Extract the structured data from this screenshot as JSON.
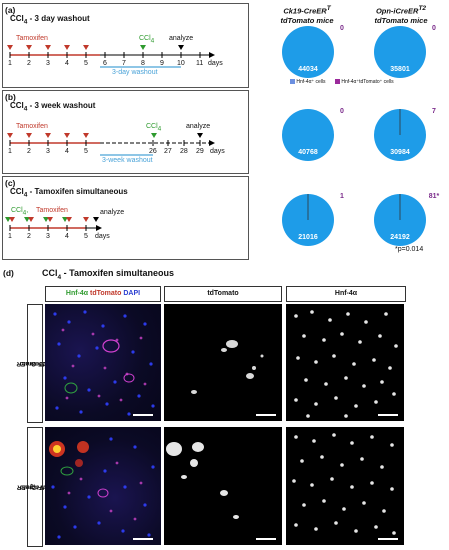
{
  "panels": {
    "a": {
      "label": "(a)",
      "title": "CCl",
      "title_sub": "4",
      "title_rest": " - 3 day washout",
      "tamoxifen": "Tamoxifen",
      "ccl": "CCl",
      "ccl_sub": "4",
      "analyze": "analyze",
      "days": [
        "1",
        "2",
        "3",
        "4",
        "5",
        "6",
        "7",
        "8",
        "9",
        "10",
        "11"
      ],
      "days_unit": "days",
      "washout": "3-day washout"
    },
    "b": {
      "label": "(b)",
      "title": "CCl",
      "title_sub": "4",
      "title_rest": " - 3 week washout",
      "tamoxifen": "Tamoxifen",
      "ccl": "CCl",
      "ccl_sub": "4",
      "analyze": "analyze",
      "days_left": [
        "1",
        "2",
        "3",
        "4",
        "5"
      ],
      "days_right": [
        "26",
        "27",
        "28",
        "29"
      ],
      "days_unit": "days",
      "washout": "3-week washout"
    },
    "c": {
      "label": "(c)",
      "title": "CCl",
      "title_sub": "4",
      "title_rest": " - Tamoxifen simultaneous",
      "ccl": "CCl",
      "ccl_sub": "4",
      "tamoxifen": "Tamoxifen",
      "analyze": "analyze",
      "days": [
        "1",
        "2",
        "3",
        "4",
        "5"
      ],
      "days_unit": "days"
    },
    "d": {
      "label": "(d)",
      "title": "CCl",
      "title_sub": "4",
      "title_rest": " - Tamoxifen simultaneous"
    }
  },
  "columns": {
    "ck19": "Ck19-CreER",
    "ck19_sup": "T",
    "ck19_line2": "tdTomato mice",
    "opn": "Opn-iCreER",
    "opn_sup": "T2",
    "opn_line2": "tdTomato mice"
  },
  "legend": {
    "hnf": "Hnf-4α⁺ cells",
    "hnf_td": "Hnf-4α⁺tdTomato⁺ cells"
  },
  "pies": {
    "a_ck19": {
      "neg": "44034",
      "pos": "0"
    },
    "a_opn": {
      "neg": "35801",
      "pos": "0"
    },
    "b_ck19": {
      "neg": "40768",
      "pos": "0"
    },
    "b_opn": {
      "neg": "30984",
      "pos": "7"
    },
    "c_ck19": {
      "neg": "21016",
      "pos": "1"
    },
    "c_opn": {
      "neg": "24192",
      "pos": "81*"
    }
  },
  "pvalue": "*p=0.014",
  "micro": {
    "merge_head_hnf": "Hnf-4α",
    "merge_head_td": "tdTomato",
    "merge_head_dapi": "DAPI",
    "td_head": "tdTomato",
    "hnf_head": "Hnf-4α",
    "row1": "Ck19-CreER",
    "row1_sup": "T",
    "row1_rest": ";tdTomato",
    "row2": "Opn-iCreER",
    "row2_sup": "T2",
    "row2_rest": ";tdTomato"
  },
  "colors": {
    "pie": "#1e9ce8",
    "pos_text": "#7a2a8a",
    "tamoxifen": "#c0392b",
    "ccl4": "#2e9a2e",
    "washout": "#4aa3d8",
    "legend_hnf": "#6b8fe0",
    "legend_td": "#9b2a9b"
  }
}
